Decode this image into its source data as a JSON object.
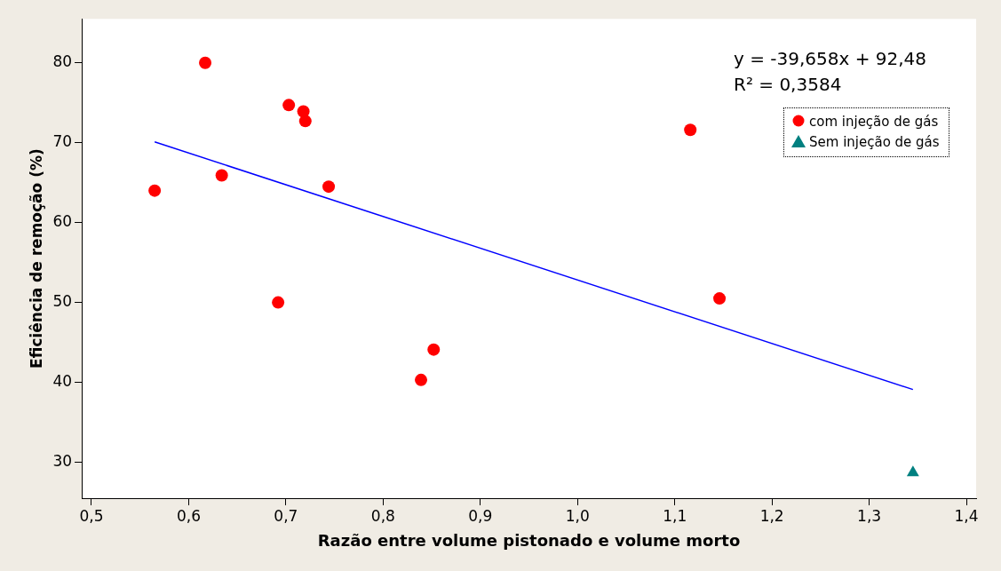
{
  "chart_data": {
    "type": "scatter",
    "xlabel": "Razão entre volume pistonado e volume morto",
    "ylabel": "Eficiência de remoção (%)",
    "xlim": [
      0.49,
      1.41
    ],
    "ylim": [
      25.5,
      85.5
    ],
    "xticks": [
      {
        "value": 0.5,
        "label": "0,5"
      },
      {
        "value": 0.6,
        "label": "0,6"
      },
      {
        "value": 0.7,
        "label": "0,7"
      },
      {
        "value": 0.8,
        "label": "0,8"
      },
      {
        "value": 0.9,
        "label": "0,9"
      },
      {
        "value": 1.0,
        "label": "1,0"
      },
      {
        "value": 1.1,
        "label": "1,1"
      },
      {
        "value": 1.2,
        "label": "1,2"
      },
      {
        "value": 1.3,
        "label": "1,3"
      },
      {
        "value": 1.4,
        "label": "1,4"
      }
    ],
    "yticks": [
      30,
      40,
      50,
      60,
      70,
      80
    ],
    "grid": false,
    "legend": "top right",
    "series": [
      {
        "name": "com injeção de gás",
        "color": "#ff0000",
        "marker": "circle",
        "x": [
          0.565,
          0.617,
          0.634,
          0.703,
          0.718,
          0.72,
          0.744,
          0.692,
          0.839,
          0.852,
          1.116,
          1.146
        ],
        "values": [
          64.0,
          80.0,
          65.9,
          74.7,
          73.9,
          72.7,
          64.5,
          50.0,
          40.3,
          44.1,
          71.6,
          50.5
        ]
      },
      {
        "name": "Sem injeção de gás",
        "color": "#008080",
        "marker": "triangle",
        "x": [
          1.345
        ],
        "values": [
          28.7
        ]
      },
      {
        "type": "line",
        "color": "#0000ff",
        "marker": "none",
        "x": [
          0.565,
          1.345
        ],
        "values": [
          70.1,
          39.1
        ]
      }
    ],
    "annotations": [
      "y = -39,658x + 92,48",
      "R² = 0,3584"
    ]
  }
}
